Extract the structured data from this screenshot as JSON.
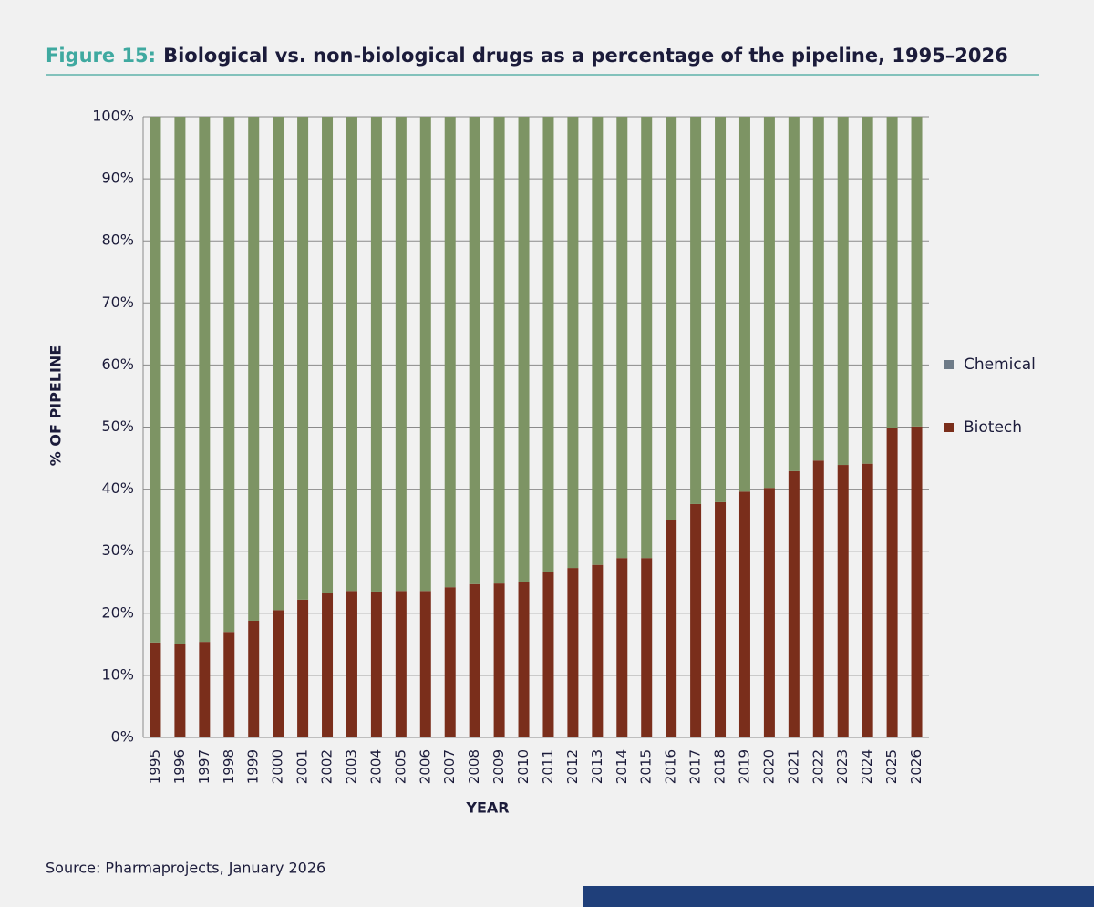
{
  "chart_data": {
    "type": "stacked_bar",
    "figure_label": "Figure 15:",
    "title": "Biological vs. non-biological drugs as a percentage of the pipeline, 1995–2026",
    "y_label": "% OF PIPELINE",
    "x_label": "YEAR",
    "source": "Source: Pharmaprojects, January 2026",
    "categories": [
      "1995",
      "1996",
      "1997",
      "1998",
      "1999",
      "2000",
      "2001",
      "2002",
      "2003",
      "2004",
      "2005",
      "2006",
      "2007",
      "2008",
      "2009",
      "2010",
      "2011",
      "2012",
      "2013",
      "2014",
      "2015",
      "2016",
      "2017",
      "2018",
      "2019",
      "2020",
      "2021",
      "2022",
      "2023",
      "2024",
      "2025",
      "2026"
    ],
    "series": [
      {
        "name": "Biotech",
        "color": "#7a2e1b",
        "legend_color": "#7a2e1b",
        "values": [
          15.3,
          15.0,
          15.4,
          17.0,
          18.8,
          20.5,
          22.2,
          23.2,
          23.6,
          23.5,
          23.6,
          23.6,
          24.2,
          24.7,
          24.8,
          25.1,
          26.6,
          27.3,
          27.8,
          28.9,
          28.9,
          35.0,
          37.6,
          37.9,
          39.6,
          40.2,
          42.9,
          44.6,
          43.9,
          44.1,
          49.8,
          50.1
        ]
      },
      {
        "name": "Chemical",
        "color": "#7d9464",
        "legend_color": "#6e7b88",
        "values": [
          84.7,
          85.0,
          84.6,
          83.0,
          81.2,
          79.5,
          77.8,
          76.8,
          76.4,
          76.5,
          76.4,
          76.4,
          75.8,
          75.3,
          75.2,
          74.9,
          73.4,
          72.7,
          72.2,
          71.1,
          71.1,
          65.0,
          62.4,
          62.1,
          60.4,
          59.8,
          57.1,
          55.4,
          56.1,
          55.9,
          50.2,
          49.9
        ]
      }
    ],
    "ylim": [
      0,
      100
    ],
    "yticks": [
      {
        "value": 0,
        "label": "0%"
      },
      {
        "value": 10,
        "label": "10%"
      },
      {
        "value": 20,
        "label": "20%"
      },
      {
        "value": 30,
        "label": "30%"
      },
      {
        "value": 40,
        "label": "40%"
      },
      {
        "value": 50,
        "label": "50%"
      },
      {
        "value": 60,
        "label": "60%"
      },
      {
        "value": 70,
        "label": "70%"
      },
      {
        "value": 80,
        "label": "80%"
      },
      {
        "value": 90,
        "label": "90%"
      },
      {
        "value": 100,
        "label": "100%"
      }
    ],
    "grid": true
  }
}
